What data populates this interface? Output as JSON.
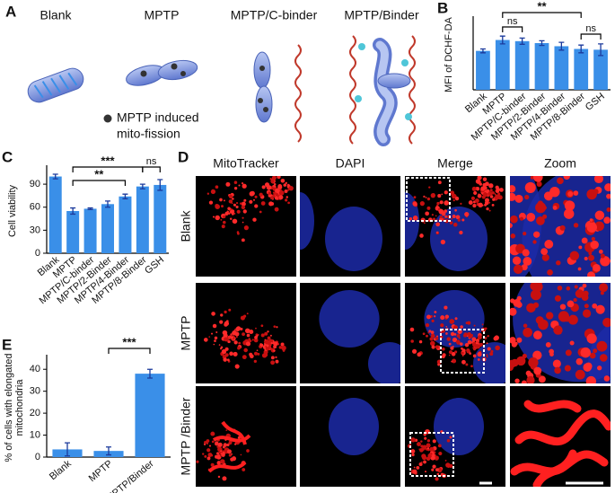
{
  "figure": {
    "panel_a": {
      "label": "A",
      "conditions": [
        "Blank",
        "MPTP",
        "MPTP/C-binder",
        "MPTP/Binder"
      ],
      "legend_lines": [
        "MPTP induced",
        "mito-fission"
      ]
    },
    "panel_d": {
      "label": "D",
      "columns": [
        "MitoTracker",
        "DAPI",
        "Merge",
        "Zoom"
      ],
      "rows": [
        "Blank",
        "MPTP",
        "MPTP /Binder"
      ]
    }
  },
  "chart_data": [
    {
      "type": "bar",
      "panel_label": "B",
      "y_label": [
        "MFI of DCHF-DA"
      ],
      "categories": [
        "Blank",
        "MPTP",
        "MPTP/C-binder",
        "MPTP/2-Binder",
        "MPTP/4-Binder",
        "MPTP/8-Binder",
        "GSH"
      ],
      "values": [
        1.0,
        1.28,
        1.25,
        1.2,
        1.12,
        1.05,
        1.03
      ],
      "errors": [
        0.05,
        0.1,
        0.08,
        0.06,
        0.1,
        0.1,
        0.15
      ],
      "color": "#3a8fe8",
      "error_color": "#1b3a9c",
      "ylim": [
        0,
        1.8
      ],
      "annotations": [
        {
          "label": "ns",
          "span": [
            1,
            2
          ]
        },
        {
          "label": "**",
          "span": [
            1,
            5
          ]
        },
        {
          "label": "ns",
          "span": [
            5,
            6
          ]
        }
      ]
    },
    {
      "type": "bar",
      "panel_label": "C",
      "y_label": [
        "Cell viability"
      ],
      "categories": [
        "Blank",
        "MPTP",
        "MPTP/C-binder",
        "MPTP/2-Binder",
        "MPTP/4-Binder",
        "MPTP/8-Binder",
        "GSH"
      ],
      "values": [
        100,
        55,
        58,
        64,
        74,
        87,
        89
      ],
      "errors": [
        3,
        4,
        1,
        4,
        3,
        3,
        7
      ],
      "color": "#3a8fe8",
      "error_color": "#1b3a9c",
      "ylim": [
        0,
        110
      ],
      "yticks": [
        0,
        30,
        60,
        90
      ],
      "annotations": [
        {
          "label": "***",
          "span": [
            1,
            5
          ]
        },
        {
          "label": "**",
          "span": [
            1,
            4
          ]
        },
        {
          "label": "ns",
          "span": [
            5,
            6
          ]
        }
      ]
    },
    {
      "type": "bar",
      "panel_label": "E",
      "y_label": [
        "% of cells with elongated",
        "mitochondria"
      ],
      "categories": [
        "Blank",
        "MPTP",
        "MPTP/Binder"
      ],
      "values": [
        3.5,
        2.8,
        38
      ],
      "errors": [
        3,
        1.8,
        2
      ],
      "color": "#3a8fe8",
      "error_color": "#1b3a9c",
      "ylim": [
        0,
        45
      ],
      "yticks": [
        0,
        10,
        20,
        30,
        40
      ],
      "annotations": [
        {
          "label": "***",
          "span": [
            1,
            2
          ]
        }
      ]
    }
  ]
}
